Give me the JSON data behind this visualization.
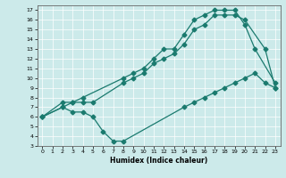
{
  "xlabel": "Humidex (Indice chaleur)",
  "bg_color": "#cceaea",
  "line_color": "#1a7a6e",
  "xlim": [
    -0.5,
    23.5
  ],
  "ylim": [
    3,
    17.5
  ],
  "xticks": [
    0,
    1,
    2,
    3,
    4,
    5,
    6,
    7,
    8,
    9,
    10,
    11,
    12,
    13,
    14,
    15,
    16,
    17,
    18,
    19,
    20,
    21,
    22,
    23
  ],
  "yticks": [
    3,
    4,
    5,
    6,
    7,
    8,
    9,
    10,
    11,
    12,
    13,
    14,
    15,
    16,
    17
  ],
  "line1_x": [
    0,
    2,
    3,
    4,
    8,
    9,
    10,
    11,
    12,
    13,
    14,
    15,
    16,
    17,
    18,
    19,
    20,
    21,
    23
  ],
  "line1_y": [
    6,
    7.5,
    7.5,
    8,
    10,
    10.5,
    11,
    12,
    13,
    13,
    14.5,
    16,
    16.5,
    17,
    17,
    17,
    15.5,
    13,
    9.5
  ],
  "line2_x": [
    0,
    2,
    3,
    4,
    5,
    8,
    9,
    10,
    11,
    12,
    13,
    14,
    15,
    16,
    17,
    18,
    19,
    20,
    22,
    23
  ],
  "line2_y": [
    6,
    7,
    7.5,
    7.5,
    7.5,
    9.5,
    10,
    10.5,
    11.5,
    12,
    12.5,
    13.5,
    15,
    15.5,
    16.5,
    16.5,
    16.5,
    16,
    13,
    9
  ],
  "line3_x": [
    0,
    2,
    3,
    4,
    5,
    6,
    7,
    8,
    14,
    15,
    16,
    17,
    18,
    19,
    20,
    21,
    22,
    23
  ],
  "line3_y": [
    6,
    7,
    6.5,
    6.5,
    6,
    4.5,
    3.5,
    3.5,
    7,
    7.5,
    8,
    8.5,
    9,
    9.5,
    10,
    10.5,
    9.5,
    9
  ]
}
